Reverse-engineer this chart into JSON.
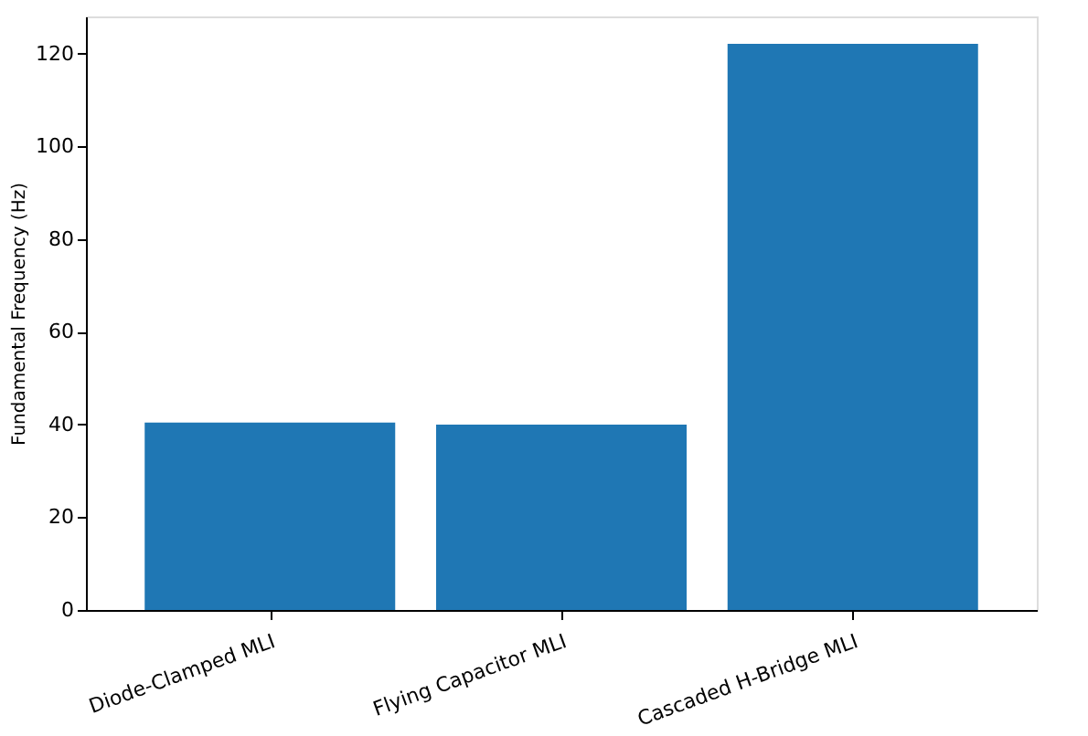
{
  "chart_data": {
    "type": "bar",
    "ylabel": "Fundamental Frequency (Hz)",
    "categories": [
      "Diode-Clamped MLI",
      "Flying Capacitor MLI",
      "Cascaded H-Bridge MLI"
    ],
    "values": [
      40.4,
      40.0,
      122.1
    ],
    "color": "#1f77b4",
    "ylim": [
      0,
      128
    ],
    "yticks": [
      0,
      20,
      40,
      60,
      80,
      100,
      120
    ],
    "grid": false
  }
}
